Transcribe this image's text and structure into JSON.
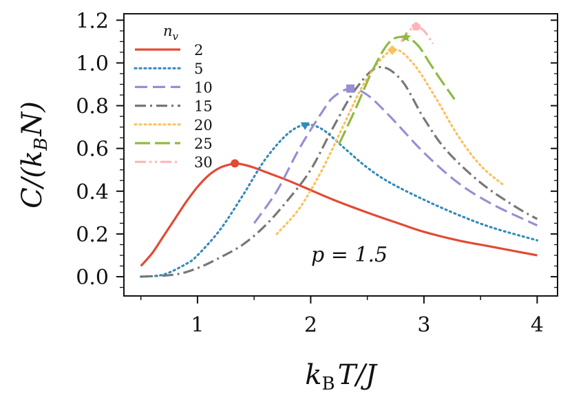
{
  "chart_data": {
    "type": "line",
    "xlabel": "k_B T/J",
    "ylabel": "C/(k_B N)",
    "xlim": [
      0.35,
      4.18
    ],
    "ylim": [
      -0.09,
      1.23
    ],
    "x_ticks": [
      1,
      2,
      3,
      4
    ],
    "x_tick_labels": [
      "1",
      "2",
      "3",
      "4"
    ],
    "y_ticks": [
      0.0,
      0.2,
      0.4,
      0.6,
      0.8,
      1.0,
      1.2
    ],
    "y_tick_labels": [
      "0.0",
      "0.2",
      "0.4",
      "0.6",
      "0.8",
      "1.0",
      "1.2"
    ],
    "legend_title": "n_v",
    "legend_position": "top-left",
    "annotation": "p = 1.5",
    "series": [
      {
        "name": "2",
        "color": "#e24a33",
        "style": "solid",
        "marker": "circle",
        "peak": [
          1.33,
          0.53
        ],
        "x": [
          0.5,
          0.6,
          0.7,
          0.8,
          0.9,
          1.0,
          1.1,
          1.2,
          1.3,
          1.33,
          1.4,
          1.5,
          1.6,
          1.8,
          2.0,
          2.2,
          2.5,
          2.8,
          3.0,
          3.3,
          3.6,
          4.0
        ],
        "y": [
          0.05,
          0.11,
          0.19,
          0.27,
          0.35,
          0.42,
          0.475,
          0.51,
          0.527,
          0.53,
          0.525,
          0.51,
          0.49,
          0.45,
          0.405,
          0.36,
          0.3,
          0.245,
          0.21,
          0.17,
          0.14,
          0.1
        ]
      },
      {
        "name": "5",
        "color": "#348abd",
        "style": "dotted",
        "marker": "triangle",
        "peak": [
          1.95,
          0.71
        ],
        "x": [
          0.5,
          0.7,
          0.9,
          1.0,
          1.2,
          1.4,
          1.6,
          1.8,
          1.95,
          2.1,
          2.3,
          2.5,
          2.7,
          3.0,
          3.3,
          3.6,
          4.0
        ],
        "y": [
          0.0,
          0.01,
          0.06,
          0.1,
          0.22,
          0.38,
          0.55,
          0.67,
          0.71,
          0.69,
          0.6,
          0.51,
          0.44,
          0.36,
          0.29,
          0.23,
          0.17
        ]
      },
      {
        "name": "10",
        "color": "#988ed5",
        "style": "dashed",
        "marker": "square",
        "peak": [
          2.35,
          0.88
        ],
        "x": [
          1.5,
          1.7,
          1.9,
          2.1,
          2.2,
          2.35,
          2.5,
          2.7,
          3.0,
          3.3,
          3.6,
          4.0
        ],
        "y": [
          0.25,
          0.4,
          0.6,
          0.77,
          0.84,
          0.88,
          0.85,
          0.75,
          0.58,
          0.44,
          0.34,
          0.24
        ]
      },
      {
        "name": "15",
        "color": "#777777",
        "style": "dashdot",
        "marker": "none",
        "peak": [
          2.6,
          0.98
        ],
        "x": [
          0.5,
          0.8,
          1.0,
          1.2,
          1.4,
          1.6,
          1.8,
          2.0,
          2.2,
          2.4,
          2.6,
          2.8,
          3.0,
          3.2,
          3.5,
          3.8,
          4.0
        ],
        "y": [
          0.0,
          0.01,
          0.04,
          0.09,
          0.15,
          0.24,
          0.36,
          0.5,
          0.7,
          0.88,
          0.98,
          0.92,
          0.74,
          0.59,
          0.44,
          0.33,
          0.27
        ]
      },
      {
        "name": "20",
        "color": "#fbc15e",
        "style": "dotted",
        "marker": "diamond",
        "peak": [
          2.72,
          1.06
        ],
        "x": [
          1.7,
          1.9,
          2.1,
          2.3,
          2.5,
          2.72,
          2.9,
          3.1,
          3.3,
          3.5,
          3.7
        ],
        "y": [
          0.2,
          0.32,
          0.5,
          0.72,
          0.93,
          1.06,
          1.0,
          0.84,
          0.66,
          0.52,
          0.43
        ]
      },
      {
        "name": "25",
        "color": "#8eba42",
        "style": "longdash",
        "marker": "star",
        "peak": [
          2.84,
          1.12
        ],
        "x": [
          2.25,
          2.4,
          2.55,
          2.7,
          2.84,
          2.95,
          3.05,
          3.15,
          3.27
        ],
        "y": [
          0.62,
          0.79,
          0.97,
          1.1,
          1.12,
          1.08,
          1.0,
          0.92,
          0.83
        ]
      },
      {
        "name": "30",
        "color": "#ffb5b8",
        "style": "dashdotdot",
        "marker": "pentagon",
        "peak": [
          2.93,
          1.17
        ],
        "x": [
          2.8,
          2.87,
          2.93,
          3.0,
          3.08
        ],
        "y": [
          1.1,
          1.15,
          1.17,
          1.15,
          1.09
        ]
      }
    ]
  }
}
